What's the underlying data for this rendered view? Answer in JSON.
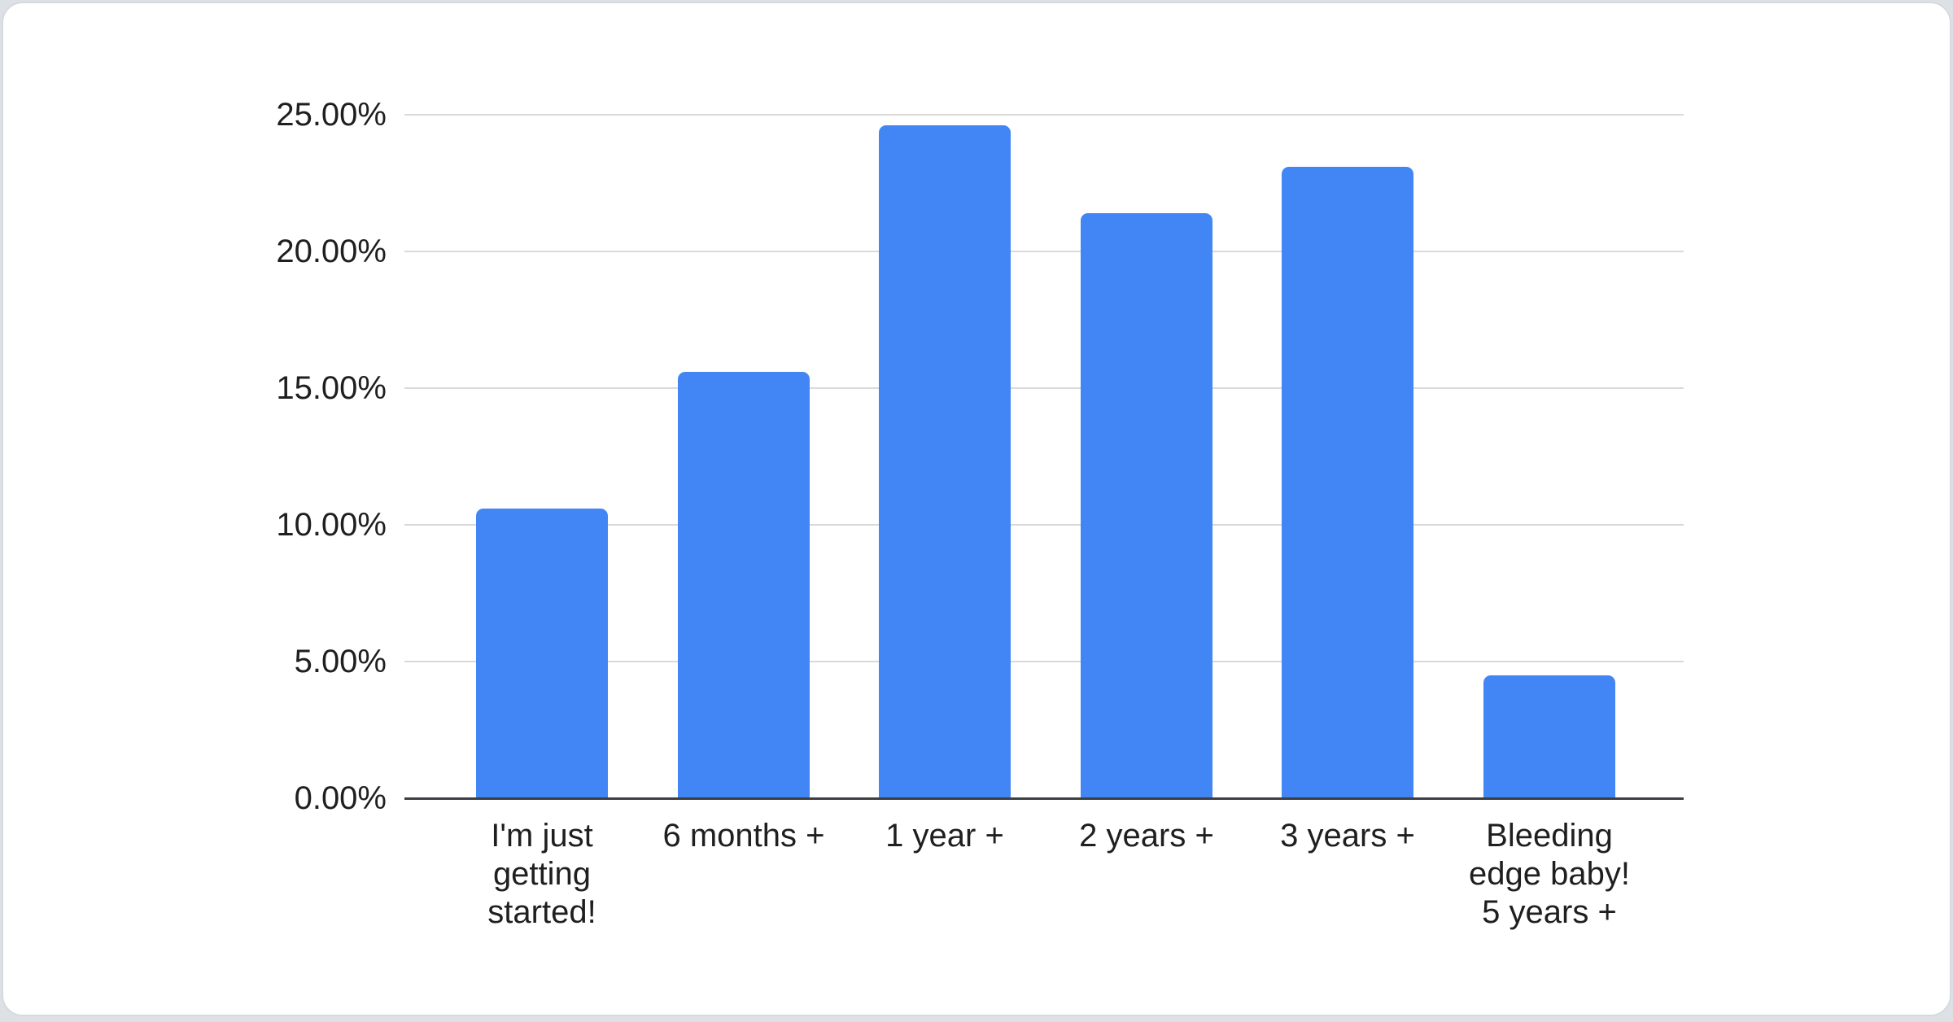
{
  "chart_data": {
    "type": "bar",
    "categories": [
      "I'm just getting started!",
      "6 months +",
      "1 year +",
      "2 years +",
      "3 years +",
      "Bleeding edge baby! 5 years +"
    ],
    "category_lines": [
      [
        "I'm just",
        "getting",
        "started!"
      ],
      [
        "6 months +"
      ],
      [
        "1 year +"
      ],
      [
        "2 years +"
      ],
      [
        "3 years +"
      ],
      [
        "Bleeding",
        "edge baby!",
        "5 years +"
      ]
    ],
    "values": [
      10.6,
      15.6,
      24.6,
      21.4,
      23.1,
      4.5
    ],
    "value_unit": "%",
    "title": "",
    "xlabel": "",
    "ylabel": "",
    "ylim": [
      0,
      25
    ],
    "ytick_step": 5,
    "ytick_labels": [
      "0.00%",
      "5.00%",
      "10.00%",
      "15.00%",
      "20.00%",
      "25.00%"
    ],
    "grid": true,
    "legend": "none",
    "bar_color": "#4285f4"
  },
  "colors": {
    "bar": "#4285f4",
    "gridline": "#d9d9d9",
    "axis_line": "#3b3e42",
    "text": "#1f1f1f",
    "card_background": "#ffffff",
    "card_border": "#d6d9dd",
    "page_background": "#dde1e5"
  }
}
